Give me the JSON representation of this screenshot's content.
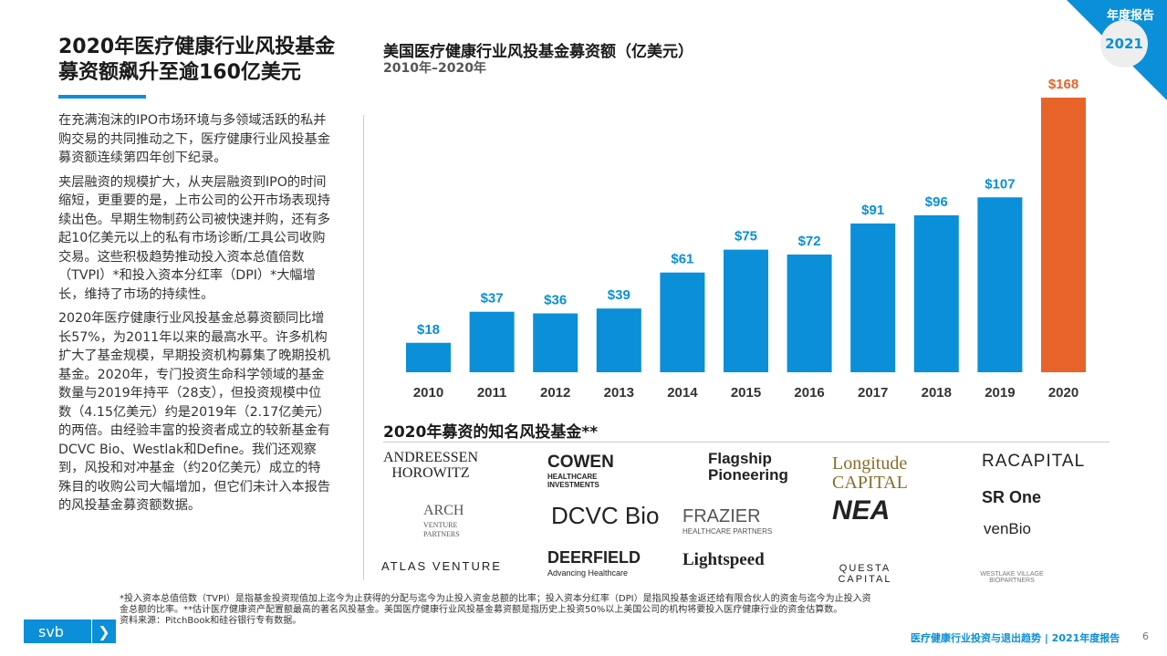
{
  "header": {
    "corner_label": "年度报告",
    "year_badge": "2021"
  },
  "left": {
    "title": "2020年医疗健康行业风投基金募资额飙升至逾160亿美元",
    "paragraphs": [
      "在充满泡沫的IPO市场环境与多领域活跃的私并购交易的共同推动之下，医疗健康行业风投基金募资额连续第四年创下纪录。",
      "夹层融资的规模扩大，从夹层融资到IPO的时间缩短，更重要的是，上市公司的公开市场表现持续出色。早期生物制药公司被快速并购，还有多起10亿美元以上的私有市场诊断/工具公司收购交易。这些积极趋势推动投入资本总值倍数（TVPI）*和投入资本分红率（DPI）*大幅增长，维持了市场的持续性。",
      "2020年医疗健康行业风投基金总募资额同比增长57%，为2011年以来的最高水平。许多机构扩大了基金规模，早期投资机构募集了晚期投机基金。2020年，专门投资生命科学领域的基金数量与2019年持平（28支），但投资规模中位数（4.15亿美元）约是2019年（2.17亿美元）的两倍。由经验丰富的投资者成立的较新基金有DCVC Bio、Westlak和Define。我们还观察到，风投和对冲基金（约20亿美元）成立的特殊目的收购公司大幅增加，但它们未计入本报告的风投基金募资额数据。"
    ]
  },
  "chart_data": {
    "type": "bar",
    "title": "美国医疗健康行业风投基金募资额（亿美元）",
    "subtitle": "2010年–2020年",
    "categories": [
      "2010",
      "2011",
      "2012",
      "2013",
      "2014",
      "2015",
      "2016",
      "2017",
      "2018",
      "2019",
      "2020"
    ],
    "values": [
      18,
      37,
      36,
      39,
      61,
      75,
      72,
      91,
      96,
      107,
      168
    ],
    "labels": [
      "$18",
      "$37",
      "$36",
      "$39",
      "$61",
      "$75",
      "$72",
      "$91",
      "$96",
      "$107",
      "$168"
    ],
    "colors": {
      "default": "#0a8fd8",
      "highlight": "#e8632a"
    },
    "ylim": [
      0,
      168
    ],
    "grid": false
  },
  "funds": {
    "title": "2020年募资的知名风投基金**",
    "logos": [
      "ANDREESSEN HOROWITZ",
      "COWEN HEALTHCARE INVESTMENTS",
      "Flagship Pioneering",
      "Longitude CAPITAL",
      "RACAPITAL",
      "ARCH VENTURE PARTNERS",
      "DCVC Bio",
      "FRAZIER HEALTHCARE PARTNERS",
      "NEA",
      "SR One",
      "venBio",
      "ATLAS VENTURE",
      "DEERFIELD Advancing Healthcare",
      "Lightspeed",
      "QUESTA CAPITAL",
      "WESTLAKE VILLAGE BIOPARTNERS"
    ]
  },
  "footer": {
    "note": "*投入资本总值倍数（TVPI）是指基金投资现值加上迄今为止获得的分配与迄今为止投入资金总额的比率；投入资本分红率（DPI）是指风投基金返还给有限合伙人的资金与迄今为止投入资金总额的比率。**估计医疗健康资产配置额最高的著名风投基金。美国医疗健康行业风投基金募资额是指历史上投资50%以上美国公司的机构将要投入医疗健康行业的资金估算数。",
    "source": "资料来源：PitchBook和硅谷银行专有数据。",
    "brand": "svb",
    "report": "医疗健康行业投资与退出趋势 | 2021年度报告",
    "page": "6"
  }
}
